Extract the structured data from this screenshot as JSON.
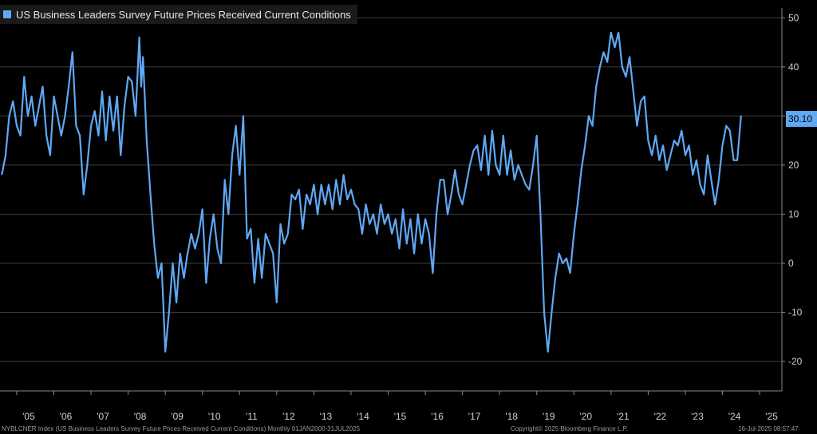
{
  "colors": {
    "background": "#000000",
    "line": "#5fa8f5",
    "grid": "#3c3c3c",
    "axis_text": "#cfcfcf",
    "badge": "#5fa8f5"
  },
  "legend": {
    "label": "US Business Leaders Survey Future Prices Received Current Conditions"
  },
  "last_value_label": "30.10",
  "footer": {
    "left": "NYBLCNER Index (US Business Leaders Survey Future Prices Received Current Conditions)  Monthly 01JAN2000-31JUL2025",
    "center": "Copyright© 2025 Bloomberg Finance L.P.",
    "right": "16-Jul-2025 08:57:47"
  },
  "chart_data": {
    "type": "line",
    "title": "US Business Leaders Survey Future Prices Received Current Conditions",
    "xlabel": "",
    "ylabel": "",
    "xlim": [
      2004.55,
      2025.6
    ],
    "ylim": [
      -26,
      52
    ],
    "yticks": [
      -20,
      -10,
      0,
      10,
      20,
      30,
      40,
      50
    ],
    "xticks": [
      {
        "label": "'05",
        "x": 2005.0
      },
      {
        "label": "'06",
        "x": 2006.0
      },
      {
        "label": "'07",
        "x": 2007.0
      },
      {
        "label": "'08",
        "x": 2008.0
      },
      {
        "label": "'09",
        "x": 2009.0
      },
      {
        "label": "'10",
        "x": 2010.0
      },
      {
        "label": "'11",
        "x": 2011.0
      },
      {
        "label": "'12",
        "x": 2012.0
      },
      {
        "label": "'13",
        "x": 2013.0
      },
      {
        "label": "'14",
        "x": 2014.0
      },
      {
        "label": "'15",
        "x": 2015.0
      },
      {
        "label": "'16",
        "x": 2016.0
      },
      {
        "label": "'17",
        "x": 2017.0
      },
      {
        "label": "'18",
        "x": 2018.0
      },
      {
        "label": "'19",
        "x": 2019.0
      },
      {
        "label": "'20",
        "x": 2020.0
      },
      {
        "label": "'21",
        "x": 2021.0
      },
      {
        "label": "'22",
        "x": 2022.0
      },
      {
        "label": "'23",
        "x": 2023.0
      },
      {
        "label": "'24",
        "x": 2024.0
      },
      {
        "label": "'25",
        "x": 2025.0
      }
    ],
    "legend": "top-left",
    "series": [
      {
        "name": "US Business Leaders Survey Future Prices Received Current Conditions",
        "points": [
          [
            2004.6,
            18
          ],
          [
            2004.7,
            22
          ],
          [
            2004.8,
            30
          ],
          [
            2004.9,
            33
          ],
          [
            2005.0,
            28
          ],
          [
            2005.1,
            26
          ],
          [
            2005.2,
            38
          ],
          [
            2005.3,
            30
          ],
          [
            2005.4,
            34
          ],
          [
            2005.5,
            28
          ],
          [
            2005.6,
            32
          ],
          [
            2005.7,
            36
          ],
          [
            2005.8,
            26
          ],
          [
            2005.9,
            22
          ],
          [
            2006.0,
            34
          ],
          [
            2006.1,
            30
          ],
          [
            2006.2,
            26
          ],
          [
            2006.3,
            30
          ],
          [
            2006.4,
            36
          ],
          [
            2006.5,
            43
          ],
          [
            2006.6,
            28
          ],
          [
            2006.7,
            26
          ],
          [
            2006.8,
            14
          ],
          [
            2006.9,
            20
          ],
          [
            2007.0,
            28
          ],
          [
            2007.1,
            31
          ],
          [
            2007.2,
            26
          ],
          [
            2007.3,
            35
          ],
          [
            2007.4,
            25
          ],
          [
            2007.5,
            34
          ],
          [
            2007.6,
            27
          ],
          [
            2007.7,
            34
          ],
          [
            2007.8,
            22
          ],
          [
            2007.9,
            32
          ],
          [
            2008.0,
            38
          ],
          [
            2008.1,
            37
          ],
          [
            2008.2,
            30
          ],
          [
            2008.3,
            46
          ],
          [
            2008.35,
            36
          ],
          [
            2008.4,
            42
          ],
          [
            2008.5,
            25
          ],
          [
            2008.6,
            14
          ],
          [
            2008.7,
            4
          ],
          [
            2008.8,
            -3
          ],
          [
            2008.9,
            0
          ],
          [
            2009.0,
            -18
          ],
          [
            2009.1,
            -10
          ],
          [
            2009.2,
            0
          ],
          [
            2009.3,
            -8
          ],
          [
            2009.4,
            2
          ],
          [
            2009.5,
            -3
          ],
          [
            2009.6,
            2
          ],
          [
            2009.7,
            6
          ],
          [
            2009.8,
            3
          ],
          [
            2009.9,
            6
          ],
          [
            2010.0,
            11
          ],
          [
            2010.1,
            -4
          ],
          [
            2010.2,
            5
          ],
          [
            2010.3,
            10
          ],
          [
            2010.4,
            3
          ],
          [
            2010.5,
            0
          ],
          [
            2010.6,
            17
          ],
          [
            2010.7,
            10
          ],
          [
            2010.8,
            22
          ],
          [
            2010.9,
            28
          ],
          [
            2011.0,
            18
          ],
          [
            2011.1,
            30
          ],
          [
            2011.2,
            5
          ],
          [
            2011.3,
            7
          ],
          [
            2011.4,
            -4
          ],
          [
            2011.5,
            5
          ],
          [
            2011.6,
            -3
          ],
          [
            2011.7,
            6
          ],
          [
            2011.8,
            4
          ],
          [
            2011.9,
            2
          ],
          [
            2012.0,
            -8
          ],
          [
            2012.1,
            8
          ],
          [
            2012.2,
            4
          ],
          [
            2012.3,
            6
          ],
          [
            2012.4,
            14
          ],
          [
            2012.5,
            13
          ],
          [
            2012.6,
            15
          ],
          [
            2012.7,
            7
          ],
          [
            2012.8,
            14
          ],
          [
            2012.9,
            12
          ],
          [
            2013.0,
            16
          ],
          [
            2013.1,
            10
          ],
          [
            2013.2,
            16
          ],
          [
            2013.3,
            12
          ],
          [
            2013.4,
            16
          ],
          [
            2013.5,
            11
          ],
          [
            2013.6,
            17
          ],
          [
            2013.7,
            12
          ],
          [
            2013.8,
            18
          ],
          [
            2013.9,
            13
          ],
          [
            2014.0,
            15
          ],
          [
            2014.1,
            12
          ],
          [
            2014.2,
            11
          ],
          [
            2014.3,
            6
          ],
          [
            2014.4,
            12
          ],
          [
            2014.5,
            8
          ],
          [
            2014.6,
            10
          ],
          [
            2014.7,
            6
          ],
          [
            2014.8,
            12
          ],
          [
            2014.9,
            8
          ],
          [
            2015.0,
            10
          ],
          [
            2015.1,
            6
          ],
          [
            2015.2,
            9
          ],
          [
            2015.3,
            3
          ],
          [
            2015.4,
            11
          ],
          [
            2015.5,
            4
          ],
          [
            2015.6,
            9
          ],
          [
            2015.7,
            2
          ],
          [
            2015.8,
            10
          ],
          [
            2015.9,
            4
          ],
          [
            2016.0,
            9
          ],
          [
            2016.1,
            6
          ],
          [
            2016.2,
            -2
          ],
          [
            2016.3,
            10
          ],
          [
            2016.4,
            17
          ],
          [
            2016.5,
            17
          ],
          [
            2016.6,
            10
          ],
          [
            2016.7,
            14
          ],
          [
            2016.8,
            19
          ],
          [
            2016.9,
            14
          ],
          [
            2017.0,
            12
          ],
          [
            2017.1,
            16
          ],
          [
            2017.2,
            20
          ],
          [
            2017.3,
            23
          ],
          [
            2017.4,
            24
          ],
          [
            2017.5,
            19
          ],
          [
            2017.6,
            26
          ],
          [
            2017.7,
            18
          ],
          [
            2017.8,
            27
          ],
          [
            2017.9,
            20
          ],
          [
            2018.0,
            18
          ],
          [
            2018.1,
            26
          ],
          [
            2018.2,
            18
          ],
          [
            2018.3,
            23
          ],
          [
            2018.4,
            17
          ],
          [
            2018.5,
            20
          ],
          [
            2018.6,
            18
          ],
          [
            2018.7,
            16
          ],
          [
            2018.8,
            15
          ],
          [
            2018.9,
            20
          ],
          [
            2019.0,
            26
          ],
          [
            2019.1,
            10
          ],
          [
            2019.2,
            -10
          ],
          [
            2019.3,
            -18
          ],
          [
            2019.4,
            -10
          ],
          [
            2019.5,
            -3
          ],
          [
            2019.6,
            2
          ],
          [
            2019.7,
            0
          ],
          [
            2019.8,
            1
          ],
          [
            2019.9,
            -2
          ],
          [
            2020.0,
            6
          ],
          [
            2020.1,
            12
          ],
          [
            2020.2,
            19
          ],
          [
            2020.3,
            24
          ],
          [
            2020.4,
            30
          ],
          [
            2020.5,
            28
          ],
          [
            2020.6,
            36
          ],
          [
            2020.7,
            40
          ],
          [
            2020.8,
            43
          ],
          [
            2020.9,
            41
          ],
          [
            2021.0,
            47
          ],
          [
            2021.1,
            44
          ],
          [
            2021.2,
            47
          ],
          [
            2021.3,
            40
          ],
          [
            2021.4,
            38
          ],
          [
            2021.5,
            42
          ],
          [
            2021.6,
            35
          ],
          [
            2021.7,
            28
          ],
          [
            2021.8,
            33
          ],
          [
            2021.9,
            34
          ],
          [
            2022.0,
            25
          ],
          [
            2022.1,
            22
          ],
          [
            2022.2,
            26
          ],
          [
            2022.3,
            21
          ],
          [
            2022.4,
            24
          ],
          [
            2022.5,
            19
          ],
          [
            2022.6,
            22
          ],
          [
            2022.7,
            25
          ],
          [
            2022.8,
            24
          ],
          [
            2022.9,
            27
          ],
          [
            2023.0,
            22
          ],
          [
            2023.1,
            24
          ],
          [
            2023.2,
            18
          ],
          [
            2023.3,
            21
          ],
          [
            2023.4,
            16
          ],
          [
            2023.5,
            14
          ],
          [
            2023.6,
            22
          ],
          [
            2023.7,
            17
          ],
          [
            2023.8,
            12
          ],
          [
            2023.9,
            17
          ],
          [
            2024.0,
            24
          ],
          [
            2024.1,
            28
          ],
          [
            2024.2,
            27
          ],
          [
            2024.3,
            21
          ],
          [
            2024.4,
            21
          ],
          [
            2024.5,
            30.1
          ]
        ]
      }
    ]
  }
}
